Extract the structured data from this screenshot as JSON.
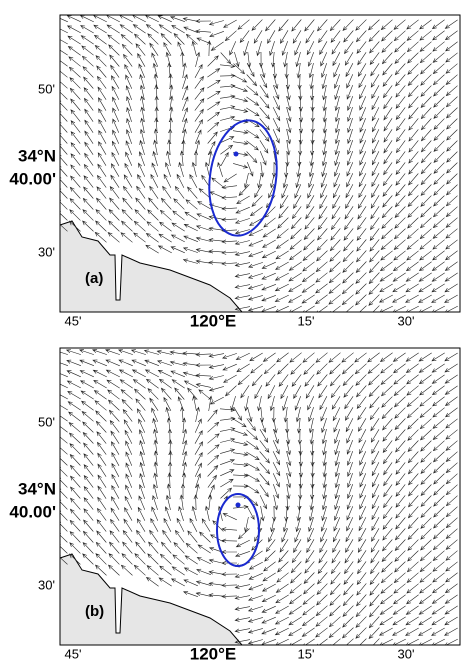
{
  "panels": [
    {
      "label": "(a)",
      "y_labels": [
        "50'",
        "34°N",
        "40.00'",
        "30'"
      ],
      "x_labels": [
        "45'",
        "120°E",
        "15'",
        "30'"
      ]
    },
    {
      "label": "(b)",
      "y_labels": [
        "50'",
        "34°N",
        "40.00'",
        "30'"
      ],
      "x_labels": [
        "45'",
        "120°E",
        "15'",
        "30'"
      ]
    }
  ]
}
